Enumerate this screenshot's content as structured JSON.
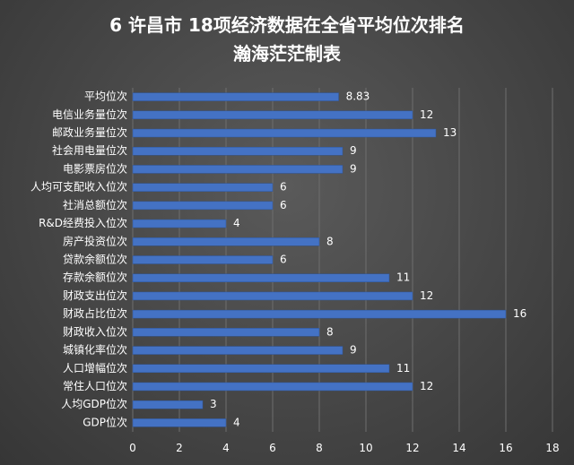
{
  "chart_data": {
    "type": "bar",
    "orientation": "horizontal",
    "title_line1": "6 许昌市 18项经济数据在全省平均位次排名",
    "title_line2": "瀚海茫茫制表",
    "categories": [
      "平均位次",
      "电信业务量位次",
      "邮政业务量位次",
      "社会用电量位次",
      "电影票房位次",
      "人均可支配收入位次",
      "社消总额位次",
      "R&D经费投入位次",
      "房产投资位次",
      "贷款余额位次",
      "存款余额位次",
      "财政支出位次",
      "财政占比位次",
      "财政收入位次",
      "城镇化率位次",
      "人口增幅位次",
      "常住人口位次",
      "人均GDP位次",
      "GDP位次"
    ],
    "values": [
      8.83,
      12,
      13,
      9,
      9,
      6,
      6,
      4,
      8,
      6,
      11,
      12,
      16,
      8,
      9,
      11,
      12,
      3,
      4
    ],
    "value_labels": [
      "8.83",
      "12",
      "13",
      "9",
      "9",
      "6",
      "6",
      "4",
      "8",
      "6",
      "11",
      "12",
      "16",
      "8",
      "9",
      "11",
      "12",
      "3",
      "4"
    ],
    "xlim": [
      0,
      18
    ],
    "xticks": [
      "0",
      "2",
      "4",
      "6",
      "8",
      "10",
      "12",
      "14",
      "16",
      "18"
    ],
    "grid": true,
    "legend": "none",
    "bar_color": "#4472C4",
    "background_color": "#464646",
    "text_color": "#FFFFFF"
  }
}
